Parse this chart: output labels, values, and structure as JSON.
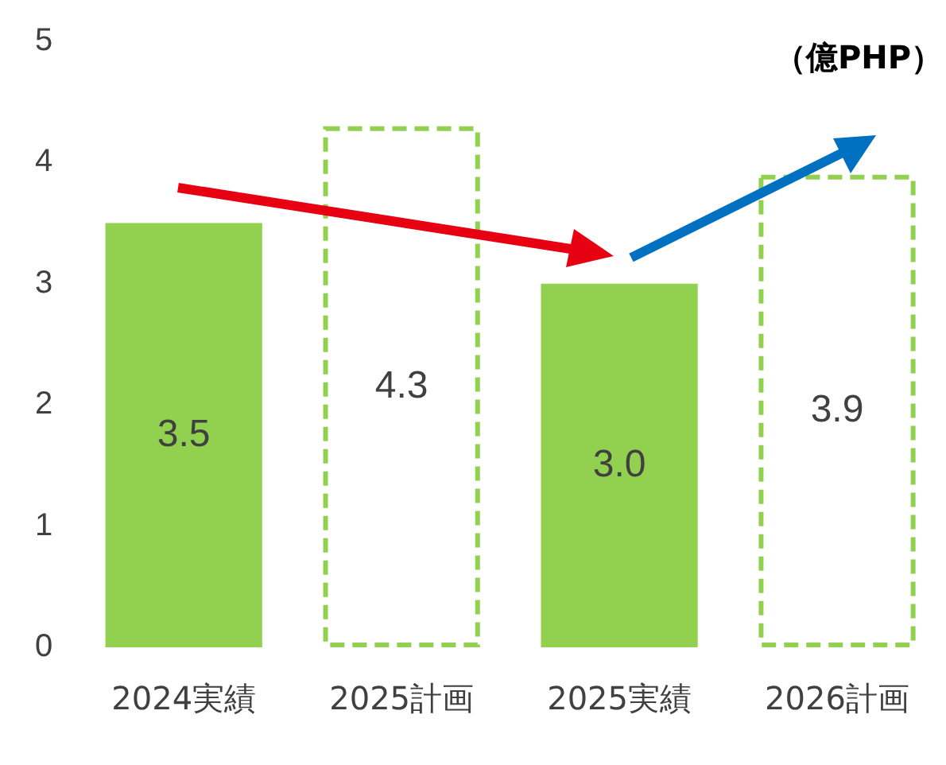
{
  "chart_data": {
    "type": "bar",
    "ylabel": "（億PHP）",
    "categories": [
      "2024実績",
      "2025計画",
      "2025実績",
      "2026計画"
    ],
    "series": [
      {
        "color": "#92d050",
        "values": [
          3.5,
          null,
          3.0,
          null
        ],
        "value_labels": [
          "3.5",
          null,
          "3.0",
          null
        ]
      },
      {
        "color": "#92d050",
        "line_style": "dashed",
        "values": [
          null,
          4.3,
          null,
          3.9
        ],
        "value_labels": [
          null,
          "4.3",
          null,
          "3.9"
        ]
      }
    ],
    "ylim": [
      0,
      5
    ],
    "yticks": [
      0,
      1,
      2,
      3,
      4,
      5
    ],
    "grid": false,
    "legend": false
  }
}
